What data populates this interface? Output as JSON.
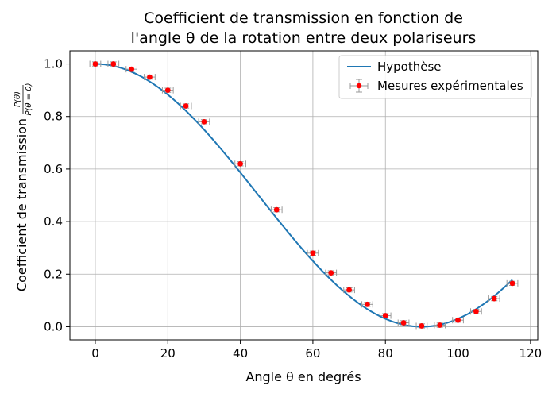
{
  "chart_data": {
    "type": "line",
    "title_line1": "Coefficient de transmission en fonction de",
    "title_line2": "l'angle θ de la rotation entre deux polariseurs",
    "xlabel": "Angle θ en degrés",
    "ylabel_main": "Coefficient de transmission",
    "ylabel_fraction_num": "P(θ)",
    "ylabel_fraction_den": "P(θ = 0)",
    "xlim": [
      -7,
      122
    ],
    "ylim": [
      -0.05,
      1.05
    ],
    "xticks": [
      0,
      20,
      40,
      60,
      80,
      100,
      120
    ],
    "yticks": [
      0.0,
      0.2,
      0.4,
      0.6,
      0.8,
      1.0
    ],
    "xtick_labels": [
      "0",
      "20",
      "40",
      "60",
      "80",
      "100",
      "120"
    ],
    "ytick_labels": [
      "0.0",
      "0.2",
      "0.4",
      "0.6",
      "0.8",
      "1.0"
    ],
    "grid": true,
    "legend_position": "top-right",
    "series": [
      {
        "name": "Hypothèse",
        "kind": "line",
        "color": "#1f77b4",
        "model": "cos^2",
        "x_range": [
          0,
          115
        ]
      },
      {
        "name": "Mesures expérimentales",
        "kind": "errorbar",
        "marker_color": "#ff0000",
        "errorbar_color": "#999999",
        "x_error": 1.5,
        "y_error": 0.008,
        "x": [
          0,
          5,
          10,
          15,
          20,
          25,
          30,
          40,
          50,
          60,
          65,
          70,
          75,
          80,
          85,
          90,
          95,
          100,
          105,
          110,
          115
        ],
        "y": [
          1.0,
          1.0,
          0.98,
          0.95,
          0.9,
          0.84,
          0.78,
          0.62,
          0.445,
          0.28,
          0.205,
          0.14,
          0.085,
          0.042,
          0.015,
          0.003,
          0.006,
          0.025,
          0.058,
          0.107,
          0.165
        ]
      }
    ]
  }
}
